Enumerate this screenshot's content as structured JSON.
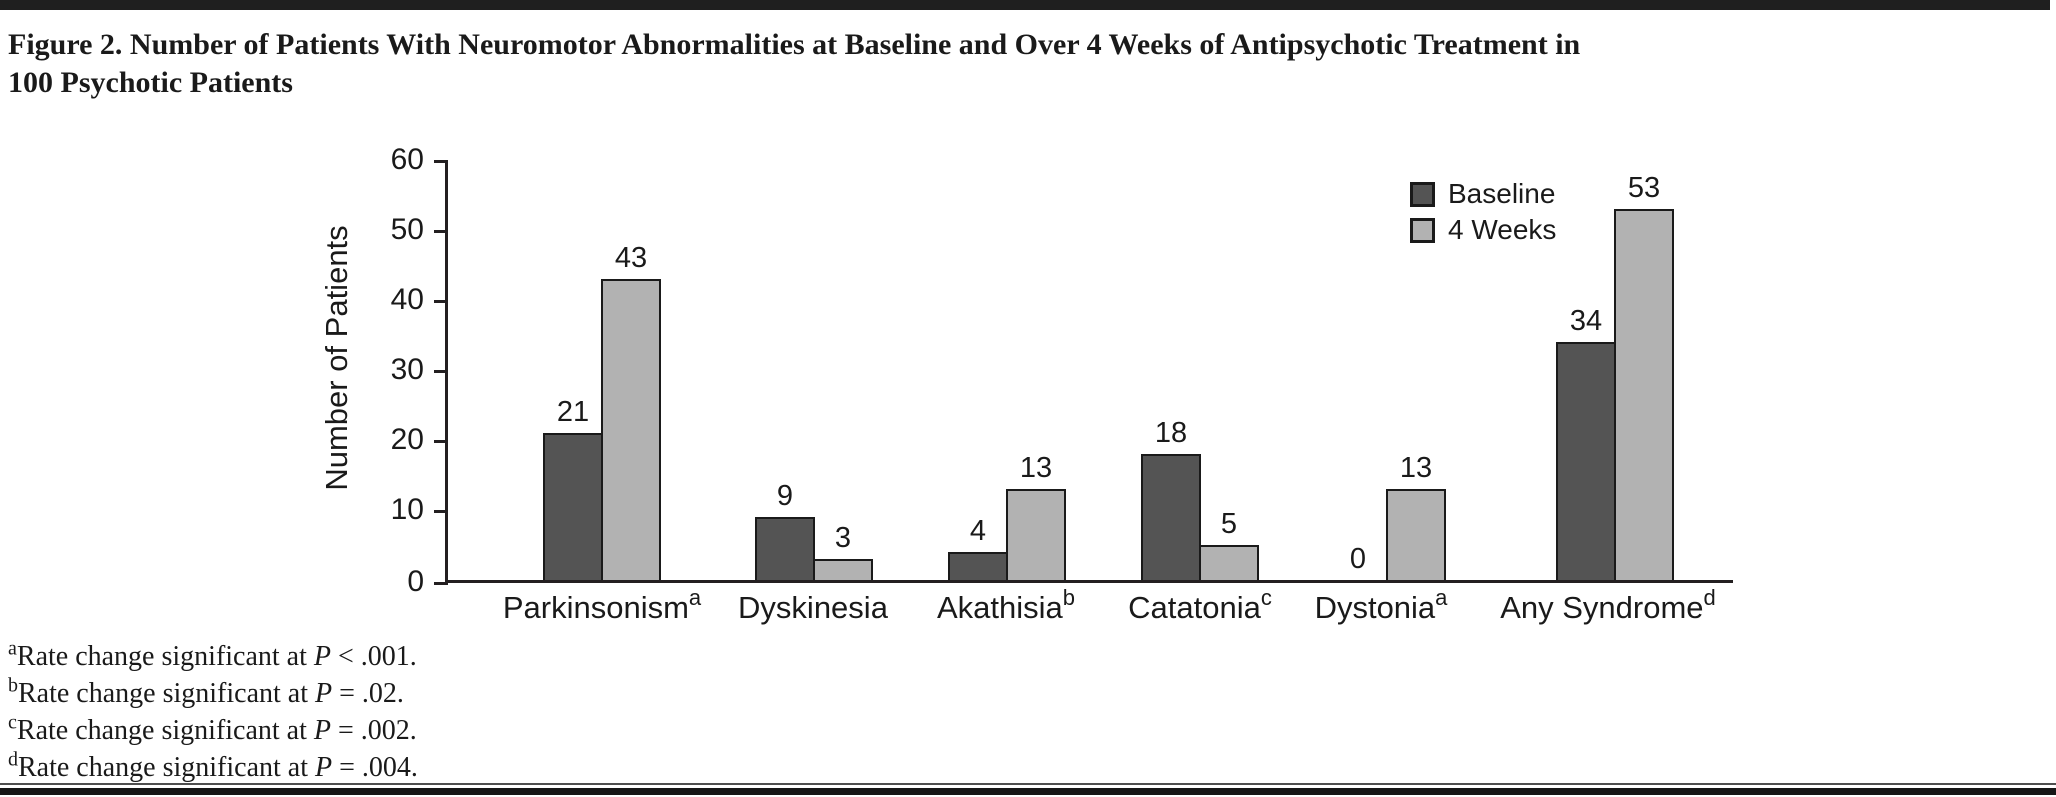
{
  "figure": {
    "title": "Figure 2. Number of Patients With Neuromotor Abnormalities at Baseline and Over 4 Weeks of Antipsychotic Treatment in 100 Psychotic Patients"
  },
  "chart_data": {
    "type": "bar",
    "title": "Figure 2. Number of Patients With Neuromotor Abnormalities at Baseline and Over 4 Weeks of Antipsychotic Treatment in 100 Psychotic Patients",
    "xlabel": "",
    "ylabel": "Number of Patients",
    "ylim": [
      0,
      60
    ],
    "yticks": [
      0,
      10,
      20,
      30,
      40,
      50,
      60
    ],
    "grid": false,
    "legend_position": "top-right",
    "categories": [
      {
        "label": "Parkinsonism",
        "sup": "a"
      },
      {
        "label": "Dyskinesia",
        "sup": ""
      },
      {
        "label": "Akathisia",
        "sup": "b"
      },
      {
        "label": "Catatonia",
        "sup": "c"
      },
      {
        "label": "Dystonia",
        "sup": "a"
      },
      {
        "label": "Any Syndrome",
        "sup": "d"
      }
    ],
    "series": [
      {
        "name": "Baseline",
        "color": "#545454",
        "values": [
          21,
          9,
          4,
          18,
          0,
          34
        ]
      },
      {
        "name": "4 Weeks",
        "color": "#b2b2b2",
        "values": [
          43,
          3,
          13,
          5,
          13,
          53
        ]
      }
    ]
  },
  "footnotes": [
    {
      "marker": "a",
      "text": "Rate change significant at ",
      "p": "P",
      "condition": " < .001."
    },
    {
      "marker": "b",
      "text": "Rate change significant at ",
      "p": "P",
      "condition": " = .02."
    },
    {
      "marker": "c",
      "text": "Rate change significant at ",
      "p": "P",
      "condition": " = .002."
    },
    {
      "marker": "d",
      "text": "Rate change significant at ",
      "p": "P",
      "condition": " = .004."
    }
  ]
}
